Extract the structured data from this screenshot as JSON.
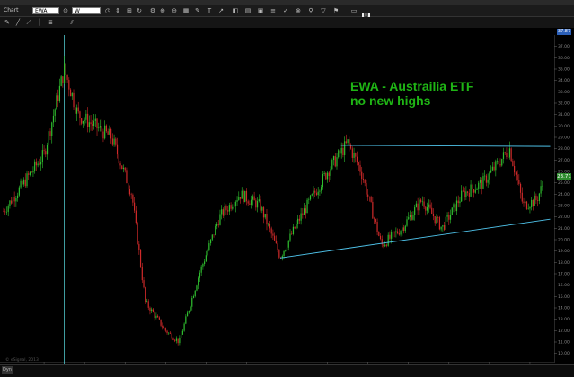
{
  "window": {
    "title": "Chart"
  },
  "toolbar": {
    "symbol_value": "EWA",
    "period_value": "W",
    "icons": [
      "menu-icon",
      "refresh-icon",
      "clock-icon",
      "settings-icon",
      "zoom-in-icon",
      "grid-icon",
      "draw-icon",
      "text-icon",
      "arrow-icon",
      "color-icon",
      "layout-icon",
      "save-icon",
      "chart-type-icon",
      "indicator-icon",
      "lock-icon",
      "print-icon"
    ],
    "u_button": "U"
  },
  "legend_text": "EWA (ISHARES MSCI AUSTRALIA ETF)  W  08-06-08:00 (Dynamic) (Weekly) (4)",
  "annotation": {
    "line1": "EWA - Austrailia ETF",
    "line2": "no new highs"
  },
  "badges": {
    "last_price": "23.71",
    "top_price": "37.87"
  },
  "status": {
    "dyn_label": "Dyn",
    "copyright": "© eSignal, 2013"
  },
  "colors": {
    "background": "#000000",
    "up": "#2fbf2f",
    "down": "#d02a2a",
    "trendline": "#4fc3ea",
    "cursor": "#5fe8ef",
    "annotation": "#1fb515"
  },
  "chart_data": {
    "type": "candlestick",
    "title": "",
    "y_ticks": [
      "37.00",
      "36.00",
      "35.00",
      "34.00",
      "33.00",
      "32.00",
      "31.00",
      "30.00",
      "29.00",
      "28.00",
      "27.00",
      "26.00",
      "25.00",
      "24.00",
      "23.00",
      "22.00",
      "21.00",
      "20.00",
      "19.00",
      "18.00",
      "17.00",
      "16.00",
      "15.00",
      "14.00",
      "13.00",
      "12.00",
      "11.00",
      "10.00"
    ],
    "x_ticks": [
      "Jul",
      "2008",
      "Jul",
      "2009",
      "Jul",
      "2010",
      "Jul",
      "2011",
      "Jul",
      "2012",
      "Jul",
      "2013",
      "Jul"
    ],
    "highlighted_date": "09/28/07",
    "ylim": [
      9.5,
      38.0
    ],
    "price_path": [
      {
        "x": "2007-01",
        "y": 22.5
      },
      {
        "x": "2007-04",
        "y": 25.0
      },
      {
        "x": "2007-07",
        "y": 27.5
      },
      {
        "x": "2007-10",
        "y": 35.0
      },
      {
        "x": "2007-12",
        "y": 31.0
      },
      {
        "x": "2008-05",
        "y": 29.0
      },
      {
        "x": "2008-08",
        "y": 24.0
      },
      {
        "x": "2008-10",
        "y": 14.5
      },
      {
        "x": "2009-01",
        "y": 12.0
      },
      {
        "x": "2009-03",
        "y": 11.0
      },
      {
        "x": "2009-06",
        "y": 17.0
      },
      {
        "x": "2009-09",
        "y": 22.0
      },
      {
        "x": "2009-12",
        "y": 24.0
      },
      {
        "x": "2010-03",
        "y": 23.0
      },
      {
        "x": "2010-06",
        "y": 18.5
      },
      {
        "x": "2010-09",
        "y": 22.0
      },
      {
        "x": "2011-01",
        "y": 26.0
      },
      {
        "x": "2011-04",
        "y": 28.5
      },
      {
        "x": "2011-06",
        "y": 26.0
      },
      {
        "x": "2011-09",
        "y": 19.5
      },
      {
        "x": "2011-12",
        "y": 21.0
      },
      {
        "x": "2012-03",
        "y": 23.5
      },
      {
        "x": "2012-06",
        "y": 21.0
      },
      {
        "x": "2012-09",
        "y": 24.0
      },
      {
        "x": "2012-12",
        "y": 25.0
      },
      {
        "x": "2013-04",
        "y": 28.0
      },
      {
        "x": "2013-06",
        "y": 23.0
      },
      {
        "x": "2013-08",
        "y": 23.5
      },
      {
        "x": "2013-09",
        "y": 25.0
      }
    ],
    "trendlines": [
      {
        "name": "resistance",
        "from": {
          "x": "2011-03",
          "y": 28.3
        },
        "to": {
          "x": "2013-10",
          "y": 28.2
        }
      },
      {
        "name": "support",
        "from": {
          "x": "2010-06",
          "y": 18.4
        },
        "to": {
          "x": "2013-10",
          "y": 21.8
        }
      }
    ]
  }
}
